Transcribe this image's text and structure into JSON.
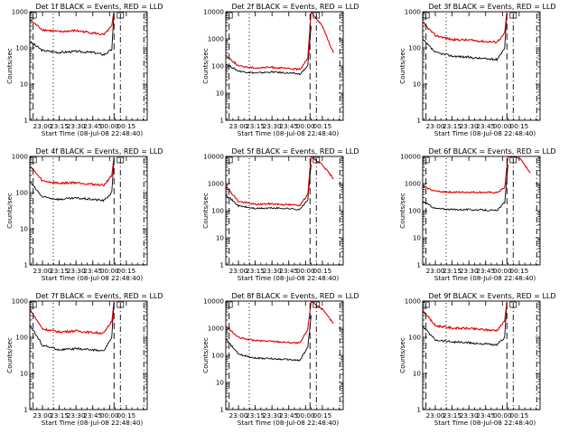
{
  "colors": {
    "black_series": "#000000",
    "red_series": "#e00000",
    "background": "#ffffff"
  },
  "common": {
    "ylabel": "Counts/sec",
    "xlabel": "Start Time (08-Jul-08 22:48:40)",
    "x_tick_labels": [
      "23:00",
      "23:15",
      "23:30",
      "23:45",
      "00:00",
      "00:15"
    ],
    "y_tick_labels": [
      "1",
      "10",
      "100",
      "1000",
      "10000"
    ]
  },
  "chart_data": [
    {
      "type": "line",
      "title": "Det 1f BLACK = Events, RED = LLD",
      "ylim": [
        1,
        1000
      ],
      "y_ticks": [
        1,
        10,
        100,
        1000
      ],
      "xlim": [
        "22:48:40",
        "00:33:40"
      ],
      "yscale": "log",
      "series": [
        {
          "x": [
            "22:48:40",
            "23:00",
            "23:15",
            "23:30",
            "23:45",
            "23:55",
            "00:02",
            "00:04"
          ],
          "values": [
            150,
            85,
            75,
            80,
            75,
            65,
            90,
            900
          ]
        },
        {
          "x": [
            "22:48:40",
            "23:00",
            "23:15",
            "23:30",
            "23:45",
            "23:55",
            "00:02",
            "00:04"
          ],
          "values": [
            600,
            320,
            280,
            300,
            260,
            230,
            400,
            1000
          ]
        }
      ]
    },
    {
      "type": "line",
      "title": "Det 2f BLACK = Events, RED = LLD",
      "ylim": [
        1,
        10000
      ],
      "y_ticks": [
        1,
        10,
        100,
        1000,
        10000
      ],
      "xlim": [
        "22:48:40",
        "00:33:40"
      ],
      "yscale": "log",
      "series": [
        {
          "x": [
            "22:48:40",
            "23:00",
            "23:15",
            "23:30",
            "23:45",
            "23:55",
            "00:02",
            "00:05"
          ],
          "values": [
            120,
            65,
            55,
            60,
            55,
            50,
            100,
            3000
          ]
        },
        {
          "x": [
            "22:48:40",
            "23:00",
            "23:15",
            "23:30",
            "23:45",
            "23:55",
            "00:02",
            "00:05",
            "00:15",
            "00:25"
          ],
          "values": [
            250,
            100,
            85,
            90,
            80,
            75,
            200,
            10000,
            3000,
            300
          ]
        }
      ]
    },
    {
      "type": "line",
      "title": "Det 3f BLACK = Events, RED = LLD",
      "ylim": [
        1,
        1000
      ],
      "y_ticks": [
        1,
        10,
        100,
        1000
      ],
      "xlim": [
        "22:48:40",
        "00:33:40"
      ],
      "yscale": "log",
      "series": [
        {
          "x": [
            "22:48:40",
            "23:00",
            "23:15",
            "23:30",
            "23:45",
            "23:55",
            "00:02",
            "00:04"
          ],
          "values": [
            170,
            75,
            60,
            55,
            50,
            48,
            100,
            900
          ]
        },
        {
          "x": [
            "22:48:40",
            "23:00",
            "23:15",
            "23:30",
            "23:45",
            "23:55",
            "00:02",
            "00:04"
          ],
          "values": [
            500,
            220,
            170,
            165,
            150,
            145,
            250,
            1000
          ]
        }
      ]
    },
    {
      "type": "line",
      "title": "Det 4f BLACK = Events, RED = LLD",
      "ylim": [
        1,
        1000
      ],
      "y_ticks": [
        1,
        10,
        100,
        1000
      ],
      "xlim": [
        "22:48:40",
        "00:33:40"
      ],
      "yscale": "log",
      "series": [
        {
          "x": [
            "22:48:40",
            "23:00",
            "23:15",
            "23:30",
            "23:45",
            "23:55",
            "00:02",
            "00:04"
          ],
          "values": [
            200,
            75,
            65,
            70,
            65,
            60,
            100,
            900
          ]
        },
        {
          "x": [
            "22:48:40",
            "23:00",
            "23:15",
            "23:30",
            "23:45",
            "23:55",
            "00:02",
            "00:04"
          ],
          "values": [
            550,
            210,
            180,
            190,
            170,
            160,
            300,
            1000
          ]
        }
      ]
    },
    {
      "type": "line",
      "title": "Det 5f BLACK = Events, RED = LLD",
      "ylim": [
        1,
        10000
      ],
      "y_ticks": [
        1,
        10,
        100,
        1000,
        10000
      ],
      "xlim": [
        "22:48:40",
        "00:33:40"
      ],
      "yscale": "log",
      "series": [
        {
          "x": [
            "22:48:40",
            "23:00",
            "23:15",
            "23:30",
            "23:45",
            "23:55",
            "00:02",
            "00:05"
          ],
          "values": [
            400,
            150,
            120,
            125,
            120,
            110,
            250,
            5000
          ]
        },
        {
          "x": [
            "22:48:40",
            "23:00",
            "23:15",
            "23:30",
            "23:45",
            "23:55",
            "00:02",
            "00:05",
            "00:15",
            "00:25"
          ],
          "values": [
            800,
            220,
            170,
            180,
            165,
            160,
            400,
            10000,
            5000,
            1500
          ]
        }
      ]
    },
    {
      "type": "line",
      "title": "Det 6f BLACK = Events, RED = LLD",
      "ylim": [
        1,
        10000
      ],
      "y_ticks": [
        1,
        10,
        100,
        1000,
        10000
      ],
      "xlim": [
        "22:48:40",
        "00:33:40"
      ],
      "yscale": "log",
      "series": [
        {
          "x": [
            "22:48:40",
            "23:00",
            "23:15",
            "23:30",
            "23:45",
            "23:55",
            "00:02",
            "00:05"
          ],
          "values": [
            220,
            120,
            110,
            110,
            105,
            100,
            200,
            5000
          ]
        },
        {
          "x": [
            "22:48:40",
            "23:00",
            "23:15",
            "23:30",
            "23:45",
            "23:55",
            "00:02",
            "00:05",
            "00:15",
            "00:25"
          ],
          "values": [
            800,
            520,
            480,
            480,
            470,
            460,
            700,
            10000,
            9000,
            2500
          ]
        }
      ]
    },
    {
      "type": "line",
      "title": "Det 7f BLACK = Events, RED = LLD",
      "ylim": [
        1,
        1000
      ],
      "y_ticks": [
        1,
        10,
        100,
        1000
      ],
      "xlim": [
        "22:48:40",
        "00:33:40"
      ],
      "yscale": "log",
      "series": [
        {
          "x": [
            "22:48:40",
            "23:00",
            "23:15",
            "23:30",
            "23:45",
            "23:55",
            "00:02",
            "00:04"
          ],
          "values": [
            220,
            60,
            45,
            48,
            45,
            42,
            100,
            900
          ]
        },
        {
          "x": [
            "22:48:40",
            "23:00",
            "23:15",
            "23:30",
            "23:45",
            "23:55",
            "00:02",
            "00:04"
          ],
          "values": [
            600,
            170,
            140,
            150,
            135,
            130,
            280,
            1000
          ]
        }
      ]
    },
    {
      "type": "line",
      "title": "Det 8f BLACK = Events, RED = LLD",
      "ylim": [
        1,
        10000
      ],
      "y_ticks": [
        1,
        10,
        100,
        1000,
        10000
      ],
      "xlim": [
        "22:48:40",
        "00:33:40"
      ],
      "yscale": "log",
      "series": [
        {
          "x": [
            "22:48:40",
            "23:00",
            "23:15",
            "23:30",
            "23:45",
            "23:55",
            "00:02",
            "00:05"
          ],
          "values": [
            400,
            110,
            80,
            75,
            70,
            65,
            200,
            3000
          ]
        },
        {
          "x": [
            "22:48:40",
            "23:00",
            "23:15",
            "23:30",
            "23:45",
            "23:55",
            "00:02",
            "00:05",
            "00:15",
            "00:25"
          ],
          "values": [
            1200,
            450,
            350,
            330,
            300,
            280,
            900,
            10000,
            5000,
            1500
          ]
        }
      ]
    },
    {
      "type": "line",
      "title": "Det 9f BLACK = Events, RED = LLD",
      "ylim": [
        1,
        1000
      ],
      "y_ticks": [
        1,
        10,
        100,
        1000
      ],
      "xlim": [
        "22:48:40",
        "00:33:40"
      ],
      "yscale": "log",
      "series": [
        {
          "x": [
            "22:48:40",
            "23:00",
            "23:15",
            "23:30",
            "23:45",
            "23:55",
            "00:02",
            "00:04"
          ],
          "values": [
            200,
            85,
            75,
            70,
            65,
            60,
            100,
            900
          ]
        },
        {
          "x": [
            "22:48:40",
            "23:00",
            "23:15",
            "23:30",
            "23:45",
            "23:55",
            "00:02",
            "00:04"
          ],
          "values": [
            550,
            210,
            180,
            175,
            160,
            155,
            280,
            1000
          ]
        }
      ]
    }
  ]
}
